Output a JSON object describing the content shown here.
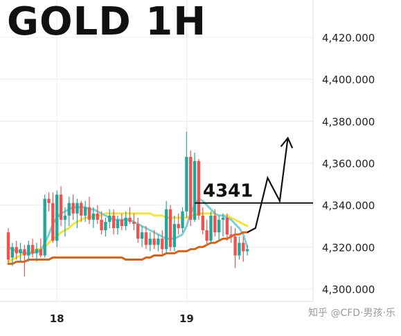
{
  "chart_data": {
    "type": "candlestick",
    "title": "GOLD 1H",
    "annotation_label": "4341",
    "watermark": "知乎 @CFD·男孩·乐",
    "ylim": [
      4292,
      4432
    ],
    "y_ticks": [
      {
        "value": 4420,
        "label": "4,420.000"
      },
      {
        "value": 4400,
        "label": "4,400.000"
      },
      {
        "value": 4380,
        "label": "4,380.000"
      },
      {
        "value": 4360,
        "label": "4,360.000"
      },
      {
        "value": 4340,
        "label": "4,340.000"
      },
      {
        "value": 4320,
        "label": "4,320.000"
      },
      {
        "value": 4300,
        "label": "4,300.000"
      }
    ],
    "x_ticks": [
      {
        "index": 12,
        "label": "18"
      },
      {
        "index": 44,
        "label": "19"
      }
    ],
    "candles": [
      [
        4327,
        4329,
        4312,
        4314
      ],
      [
        4315,
        4322,
        4311,
        4320
      ],
      [
        4320,
        4323,
        4314,
        4317
      ],
      [
        4317,
        4322,
        4313,
        4319
      ],
      [
        4319,
        4321,
        4306,
        4316
      ],
      [
        4316,
        4323,
        4313,
        4321
      ],
      [
        4321,
        4324,
        4315,
        4317
      ],
      [
        4317,
        4322,
        4313,
        4319
      ],
      [
        4319,
        4324,
        4315,
        4316
      ],
      [
        4316,
        4345,
        4315,
        4343
      ],
      [
        4343,
        4346,
        4337,
        4341
      ],
      [
        4341,
        4346,
        4322,
        4323
      ],
      [
        4323,
        4347,
        4320,
        4345
      ],
      [
        4345,
        4349,
        4330,
        4333
      ],
      [
        4333,
        4339,
        4325,
        4335
      ],
      [
        4335,
        4344,
        4330,
        4341
      ],
      [
        4341,
        4345,
        4333,
        4336
      ],
      [
        4336,
        4343,
        4329,
        4341
      ],
      [
        4341,
        4342,
        4332,
        4335
      ],
      [
        4335,
        4342,
        4332,
        4339
      ],
      [
        4339,
        4344,
        4331,
        4333
      ],
      [
        4333,
        4339,
        4329,
        4336
      ],
      [
        4336,
        4340,
        4331,
        4333
      ],
      [
        4333,
        4337,
        4326,
        4328
      ],
      [
        4328,
        4334,
        4325,
        4332
      ],
      [
        4332,
        4338,
        4329,
        4335
      ],
      [
        4335,
        4338,
        4326,
        4329
      ],
      [
        4329,
        4335,
        4326,
        4333
      ],
      [
        4333,
        4336,
        4328,
        4330
      ],
      [
        4330,
        4337,
        4328,
        4334
      ],
      [
        4334,
        4339,
        4331,
        4332
      ],
      [
        4332,
        4336,
        4328,
        4331
      ],
      [
        4331,
        4334,
        4322,
        4324
      ],
      [
        4324,
        4330,
        4320,
        4327
      ],
      [
        4327,
        4330,
        4319,
        4321
      ],
      [
        4321,
        4327,
        4318,
        4324
      ],
      [
        4324,
        4328,
        4319,
        4321
      ],
      [
        4321,
        4326,
        4318,
        4324
      ],
      [
        4324,
        4328,
        4316,
        4319
      ],
      [
        4319,
        4342,
        4317,
        4338
      ],
      [
        4338,
        4340,
        4318,
        4320
      ],
      [
        4320,
        4335,
        4318,
        4331
      ],
      [
        4331,
        4336,
        4326,
        4329
      ],
      [
        4329,
        4339,
        4327,
        4337
      ],
      [
        4337,
        4375,
        4334,
        4363
      ],
      [
        4363,
        4366,
        4330,
        4333
      ],
      [
        4333,
        4365,
        4332,
        4361
      ],
      [
        4361,
        4362,
        4333,
        4335
      ],
      [
        4335,
        4339,
        4326,
        4328
      ],
      [
        4328,
        4333,
        4321,
        4323
      ],
      [
        4323,
        4337,
        4322,
        4335
      ],
      [
        4335,
        4338,
        4325,
        4327
      ],
      [
        4327,
        4335,
        4323,
        4333
      ],
      [
        4333,
        4336,
        4325,
        4334
      ],
      [
        4334,
        4336,
        4323,
        4326
      ],
      [
        4326,
        4330,
        4322,
        4325
      ],
      [
        4325,
        4329,
        4310,
        4316
      ],
      [
        4316,
        4325,
        4314,
        4322
      ],
      [
        4322,
        4325,
        4313,
        4318
      ],
      [
        4318,
        4321,
        4316,
        4319
      ]
    ],
    "series": [
      {
        "color": "#f3e33b",
        "values": [
          4313,
          4314,
          4315,
          4316,
          4317,
          4317,
          4318,
          4319,
          4319,
          4320,
          4322,
          4324,
          4325,
          4327,
          4328,
          4329,
          4331,
          4332,
          4333,
          4334,
          4334,
          4335,
          4335,
          4335,
          4336,
          4336,
          4336,
          4336,
          4336,
          4336,
          4336,
          4336,
          4336,
          4336,
          4336,
          4336,
          4335,
          4335,
          4335,
          4334,
          4334,
          4334,
          4334,
          4334,
          4334,
          4335,
          4335,
          4336,
          4336,
          4336,
          4336,
          4336,
          4335,
          4335,
          4335,
          4334,
          4333,
          4332,
          4331,
          4330
        ]
      },
      {
        "color": "#7fcfd6",
        "values": [
          4320,
          4319,
          4318,
          4318,
          4317,
          4317,
          4317,
          4318,
          4318,
          4322,
          4326,
          4331,
          4334,
          4336,
          4337,
          4338,
          4339,
          4339,
          4339,
          4339,
          4338,
          4338,
          4337,
          4336,
          4335,
          4334,
          4333,
          4333,
          4333,
          4333,
          4333,
          4332,
          4331,
          4330,
          4329,
          4328,
          4327,
          4326,
          4325,
          4324,
          4324,
          4324,
          4325,
          4326,
          4330,
          4336,
          4340,
          4343,
          4342,
          4340,
          4338,
          4336,
          4335,
          4335,
          4334,
          4333,
          4331,
          4329,
          4326,
          4320
        ]
      },
      {
        "color": "#d4631c",
        "values": [
          4312,
          4312,
          4313,
          4313,
          4313,
          4314,
          4314,
          4314,
          4314,
          4314,
          4314,
          4315,
          4315,
          4315,
          4315,
          4315,
          4315,
          4315,
          4315,
          4315,
          4315,
          4315,
          4315,
          4315,
          4315,
          4315,
          4315,
          4315,
          4315,
          4314,
          4314,
          4314,
          4314,
          4314,
          4315,
          4315,
          4316,
          4316,
          4316,
          4317,
          4317,
          4317,
          4318,
          4318,
          4318,
          4319,
          4319,
          4320,
          4320,
          4321,
          4322,
          4322,
          4323,
          4324,
          4324,
          4325,
          4326,
          4326,
          4327,
          4327
        ]
      }
    ],
    "horizontal_line": {
      "value": 4341
    },
    "projection": [
      {
        "index": 59,
        "value": 4327
      },
      {
        "index": 61,
        "value": 4329
      },
      {
        "index": 64,
        "value": 4353
      },
      {
        "index": 67,
        "value": 4342
      },
      {
        "index": 69,
        "value": 4372
      }
    ]
  }
}
